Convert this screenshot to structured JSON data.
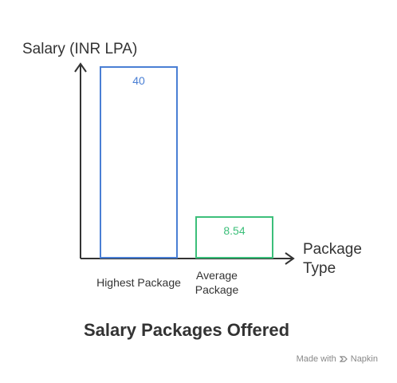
{
  "chart_data": {
    "type": "bar",
    "title": "Salary Packages Offered",
    "ylabel": "Salary (INR LPA)",
    "xlabel": "Package Type",
    "categories": [
      "Highest Package",
      "Average Package"
    ],
    "values": [
      40,
      8.54
    ],
    "value_labels": [
      "40",
      "8.54"
    ],
    "bar_colors": [
      "#4a7fd4",
      "#3cbf7a"
    ],
    "ylim": [
      0,
      40
    ],
    "grid": false,
    "legend": "none"
  },
  "watermark": {
    "prefix": "Made with",
    "brand": "Napkin",
    "icon": "napkin-icon"
  },
  "colors": {
    "axis": "#333333",
    "text": "#333333",
    "watermark": "#888888"
  }
}
